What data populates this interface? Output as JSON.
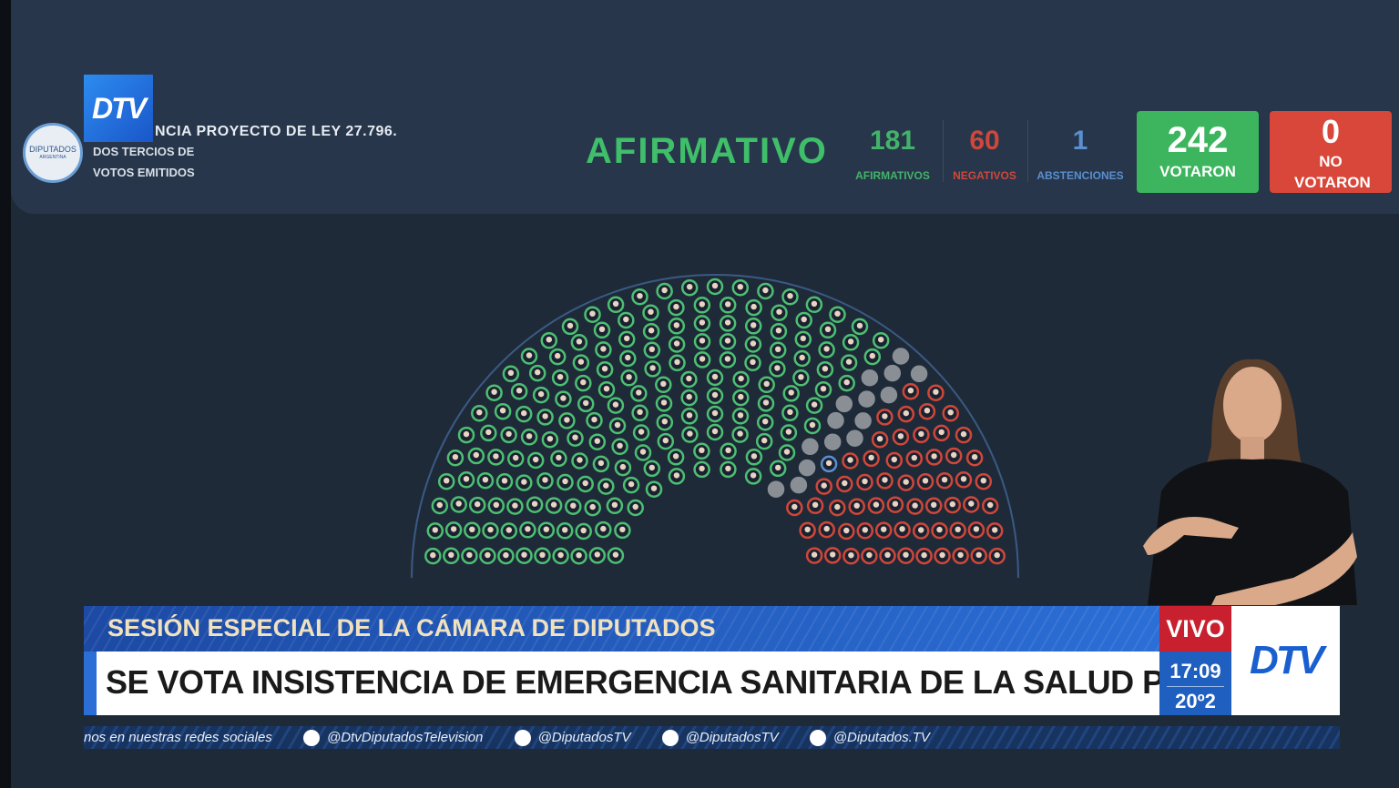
{
  "header": {
    "logo": "DTV",
    "seal": [
      "DIPUTADOS",
      "ARGENTINA"
    ],
    "title": "NCIA PROYECTO DE LEY 27.796.",
    "subtitle_lines": [
      "DOS TERCIOS DE",
      "VOTOS EMITIDOS"
    ],
    "result": "AFIRMATIVO"
  },
  "tally": [
    {
      "value": 181,
      "label": "AFIRMATIVOS"
    },
    {
      "value": 60,
      "label": "NEGATIVOS"
    },
    {
      "value": 1,
      "label": "ABSTENCIONES"
    }
  ],
  "totals": [
    {
      "value": 242,
      "label": "VOTARON"
    },
    {
      "value": 0,
      "label": "NO VOTARON"
    }
  ],
  "lower_third": {
    "kicker": "SESIÓN ESPECIAL DE LA CÁMARA DE DIPUTADOS",
    "headline": "SE VOTA INSISTENCIA DE EMERGENCIA SANITARIA DE LA SALUD PEDIÁTRICA",
    "live": "VIVO",
    "time": "17:09",
    "temperature": "20º2",
    "logo": "DTV"
  },
  "ticker": [
    "nos en nuestras redes sociales",
    "@DtvDiputadosTelevision",
    "@DiputadosTV",
    "@DiputadosTV",
    "@Diputados.TV"
  ]
}
